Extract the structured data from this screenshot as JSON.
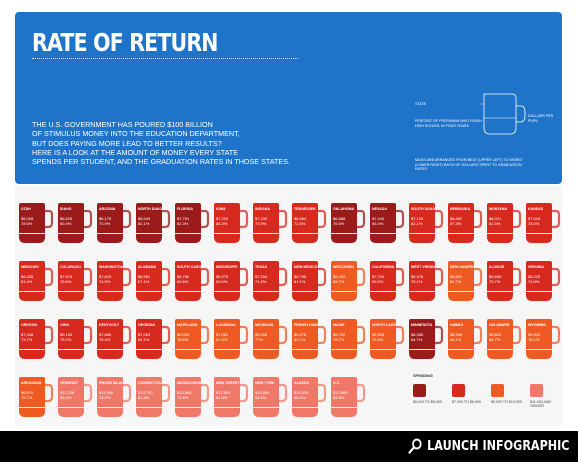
{
  "header": {
    "title": "RATE OF RETURN",
    "intro": [
      "THE U.S. GOVERNMENT HAS POURED $100 BILLION",
      "OF STIMULUS MONEY INTO THE EDUCATION DEPARTMENT,",
      "BUT DOES PAYING MORE LEAD TO BETTER RESULTS?",
      "HERE IS A LOOK AT THE AMOUNT OF MONEY EVERY STATE",
      "SPENDS PER STUDENT, AND THE GRADUATION RATES IN THOSE STATES."
    ],
    "key": {
      "state_label": "STATE",
      "dollars_label": "DOLLARS PER PUPIL",
      "percent_label": "PERCENT OF FRESHMAN WHO FINISH HIGH SCHOOL IN FOUR YEARS",
      "note": "MUGS ARE ARRANGED FROM BEST (UPPER LEFT) TO WORST (LOWER RIGHT) RATIO OF DOLLARS SPENT TO GRADUATION RATES."
    }
  },
  "colors": {
    "banner": "#1f74c9",
    "tier1": "#9b1a1a",
    "tier2": "#d72a1e",
    "tier3": "#ee5a22",
    "tier4": "#f07868"
  },
  "chart_data": {
    "type": "table",
    "title": "RATE OF RETURN",
    "columns": [
      "state",
      "spending",
      "graduation_rate",
      "tier"
    ],
    "rows": [
      [
        "UTAH",
        "$5,008",
        "78.6%",
        1
      ],
      [
        "IDAHO",
        "$6,625",
        "80.4%",
        1
      ],
      [
        "ARIZONA",
        "$6,176",
        "70.9%",
        1
      ],
      [
        "NORTH DAKOTA",
        "$8,949",
        "82.1%",
        1
      ],
      [
        "FLORIDA",
        "$7,761",
        "62.3%",
        1
      ],
      [
        "IOWA",
        "$7,203",
        "86.3%",
        2
      ],
      [
        "INDIANA",
        "$7,333",
        "73.9%",
        2
      ],
      [
        "TENNESSEE",
        "$6,564",
        "72.6%",
        2
      ],
      [
        "OKLAHOMA",
        "$6,888",
        "76.6%",
        1
      ],
      [
        "NEVADA",
        "$7,440",
        "55.4%",
        1
      ],
      [
        "SOUTH DAKOTA",
        "$7,125",
        "82.1%",
        2
      ],
      [
        "NEBRASKA",
        "$8,452",
        "87.3%",
        2
      ],
      [
        "MONTANA",
        "$8,021",
        "81.5%",
        2
      ],
      [
        "KANSAS",
        "$7,616",
        "78.0%",
        2
      ],
      [
        "MISSOURI",
        "$6,335",
        "81.4%",
        2
      ],
      [
        "COLORADO",
        "$7,615",
        "76.6%",
        2
      ],
      [
        "WASHINGTON",
        "$7,615",
        "74.9%",
        2
      ],
      [
        "ALABAMA",
        "$6,981",
        "67.1%",
        2
      ],
      [
        "SOUTH CAROLINA",
        "$6,750",
        "60.6%",
        2
      ],
      [
        "MISSISSIPPI",
        "$6,575",
        "63.0%",
        2
      ],
      [
        "TEXAS",
        "$7,054",
        "71.6%",
        2
      ],
      [
        "NEW MEXICO",
        "$6,796",
        "61.1%",
        2
      ],
      [
        "WISCONSIN",
        "$9,250",
        "86.7%",
        3
      ],
      [
        "CALIFORNIA",
        "$7,704",
        "69.2%",
        2
      ],
      [
        "WEST VIRGINIA",
        "$6,476",
        "75.1%",
        2
      ],
      [
        "NEW HAMPSHIRE",
        "$9,801",
        "81.7%",
        3
      ],
      [
        "ILLINOIS",
        "$9,665",
        "79.7%",
        2
      ],
      [
        "VIRGINIA",
        "$8,225",
        "74.5%",
        2
      ],
      [
        "OREGON",
        "$7,348",
        "73.7%",
        2
      ],
      [
        "OHIO",
        "$9,155",
        "79.2%",
        2
      ],
      [
        "KENTUCKY",
        "$7,865",
        "76.4%",
        2
      ],
      [
        "GEORGIA",
        "$7,063",
        "64.1%",
        2
      ],
      [
        "MARYLAND",
        "$9,033",
        "78.6%",
        3
      ],
      [
        "LOUISIANA",
        "$7,063",
        "61.3%",
        3
      ],
      [
        "MICHIGAN",
        "$9,055",
        "77%",
        3
      ],
      [
        "PENNSYLVANIA",
        "$9,475",
        "82.1%",
        3
      ],
      [
        "MAINE",
        "$9,762",
        "78.7%",
        3
      ],
      [
        "NORTH CAROLINA",
        "$6,943",
        "72.8%",
        3
      ],
      [
        "MINNESOTA",
        "$8,368",
        "84.7%",
        1
      ],
      [
        "HAWAII",
        "$8,396",
        "68.1%",
        3
      ],
      [
        "DELAWARE",
        "$9,820",
        "66.7%",
        3
      ],
      [
        "WYOMING",
        "$9,840",
        "76.1%",
        3
      ],
      [
        "ARKANSAS",
        "$6,970",
        "75.7%",
        3
      ],
      [
        "VERMONT",
        "$11,228",
        "85.9%",
        4
      ],
      [
        "RHODE ISLAND",
        "$11,060",
        "78.4%",
        4
      ],
      [
        "CONNECTICUT",
        "$10,790",
        "81.8%",
        4
      ],
      [
        "MASSACHUSETTS",
        "$10,860",
        "79.5%",
        4
      ],
      [
        "NEW JERSEY",
        "$12,981",
        "84.8%",
        4
      ],
      [
        "NEW YORK",
        "$14,093",
        "68.5%",
        4
      ],
      [
        "ALASKA",
        "$10,830",
        "66.5%",
        4
      ],
      [
        "D.C.",
        "$12,860",
        "68.8%",
        4
      ]
    ]
  },
  "legend": {
    "title": "SPENDING",
    "items": [
      {
        "label": "$5,000 TO $6,999"
      },
      {
        "label": "$7,000 TO $8,999"
      },
      {
        "label": "$9,000 TO $10,999"
      },
      {
        "label": "$11,000 AND HIGHER"
      }
    ]
  },
  "footer": {
    "launch": "LAUNCH INFOGRAPHIC"
  }
}
